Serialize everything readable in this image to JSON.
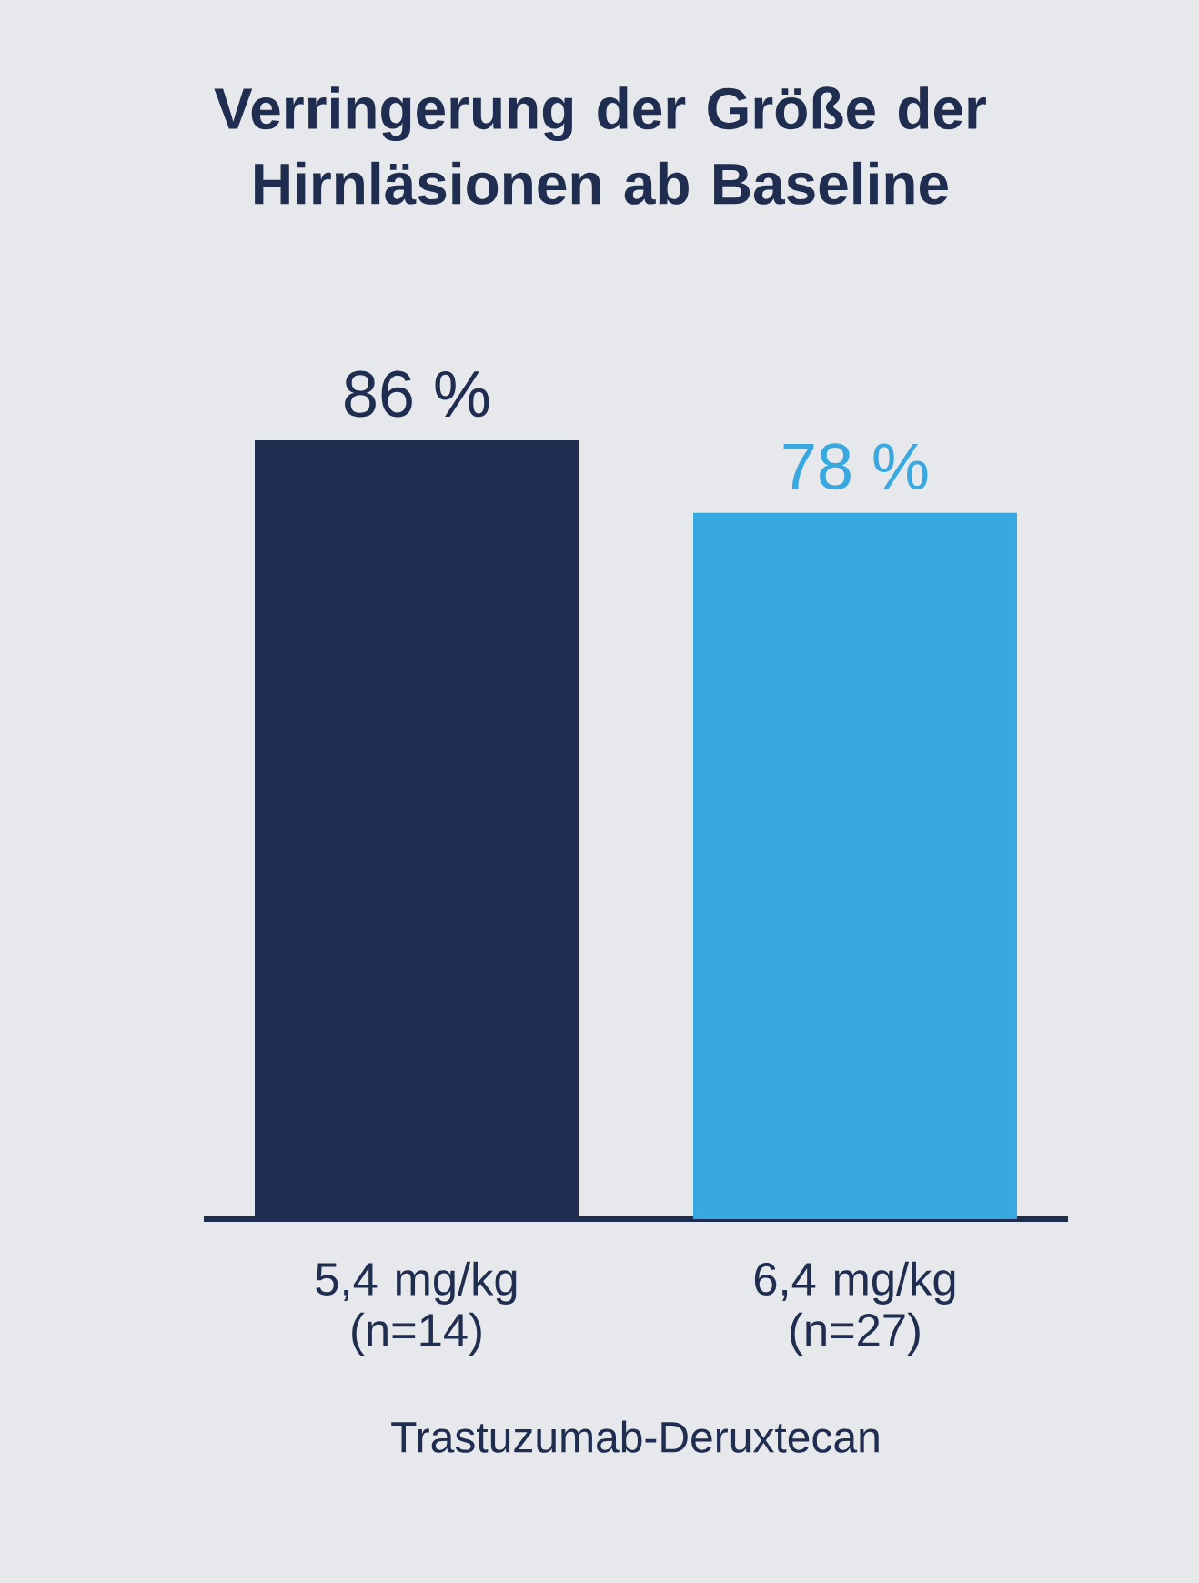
{
  "chart_data": {
    "type": "bar",
    "title": "Verringerung der Größe der Hirnläsionen ab Baseline",
    "categories": [
      "5,4 mg/kg (n=14)",
      "6,4 mg/kg (n=27)"
    ],
    "values": [
      86,
      78
    ],
    "colors": [
      "#1f2d50",
      "#38a8e0"
    ],
    "value_labels": [
      "86 %",
      "78 %"
    ],
    "xlabel": "Trastuzumab-Deruxtecan"
  }
}
